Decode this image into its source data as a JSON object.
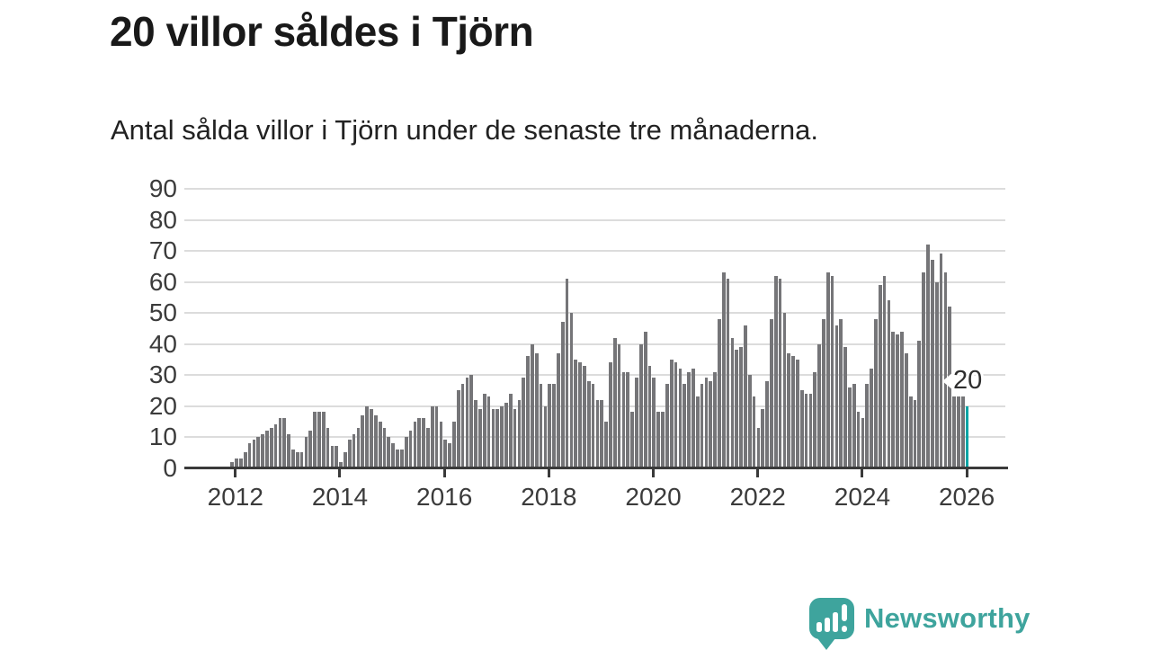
{
  "title": "20 villor såldes i Tjörn",
  "subtitle": "Antal sålda villor i Tjörn under de senaste tre månaderna.",
  "chart_data": {
    "type": "bar",
    "title": "20 villor såldes i Tjörn",
    "subtitle": "Antal sålda villor i Tjörn under de senaste tre månaderna.",
    "ylabel": "",
    "xlabel": "",
    "grid": true,
    "y_ticks": [
      0,
      10,
      20,
      30,
      40,
      50,
      60,
      70,
      80,
      90
    ],
    "ylim": [
      0,
      95
    ],
    "x_tick_labels": [
      "2012",
      "2014",
      "2016",
      "2018",
      "2020",
      "2022",
      "2024",
      "2026"
    ],
    "start_month": "2011-12",
    "months_per_bar": 1,
    "bar_color": "#757578",
    "highlight_color": "#00a5a5",
    "highlight_index": 169,
    "highlight_label": "20",
    "values": [
      2,
      3,
      3,
      5,
      8,
      9,
      10,
      11,
      12,
      13,
      14,
      16,
      16,
      11,
      6,
      5,
      5,
      10,
      12,
      18,
      18,
      18,
      13,
      7,
      7,
      2,
      5,
      9,
      11,
      13,
      17,
      20,
      19,
      17,
      15,
      13,
      10,
      8,
      6,
      6,
      10,
      12,
      15,
      16,
      16,
      13,
      20,
      20,
      15,
      9,
      8,
      15,
      25,
      27,
      29,
      30,
      22,
      19,
      24,
      23,
      19,
      19,
      20,
      21,
      24,
      19,
      22,
      29,
      36,
      40,
      37,
      27,
      20,
      27,
      27,
      37,
      47,
      61,
      50,
      35,
      34,
      33,
      28,
      27,
      22,
      22,
      15,
      34,
      42,
      40,
      31,
      31,
      18,
      29,
      40,
      44,
      33,
      29,
      18,
      18,
      27,
      35,
      34,
      32,
      27,
      31,
      32,
      23,
      27,
      29,
      28,
      31,
      48,
      63,
      61,
      42,
      38,
      39,
      46,
      30,
      23,
      13,
      19,
      28,
      48,
      62,
      61,
      50,
      37,
      36,
      35,
      25,
      24,
      24,
      31,
      40,
      48,
      63,
      62,
      46,
      48,
      39,
      26,
      27,
      18,
      16,
      27,
      32,
      48,
      59,
      62,
      54,
      44,
      43,
      44,
      37,
      23,
      22,
      41,
      63,
      72,
      67,
      60,
      69,
      63,
      52,
      23,
      23,
      23,
      20
    ]
  },
  "annotation": {
    "label": "20"
  },
  "logo": {
    "text": "Newsworthy",
    "icon": "speech-bubble-bar-chart-icon",
    "color": "#3ea49d"
  },
  "colors": {
    "bar": "#757578",
    "highlight": "#00a5a5",
    "axis": "#3a3a3a",
    "gridline": "#dcdcdc",
    "title_text": "#191919",
    "logo_teal": "#3ea49d"
  }
}
